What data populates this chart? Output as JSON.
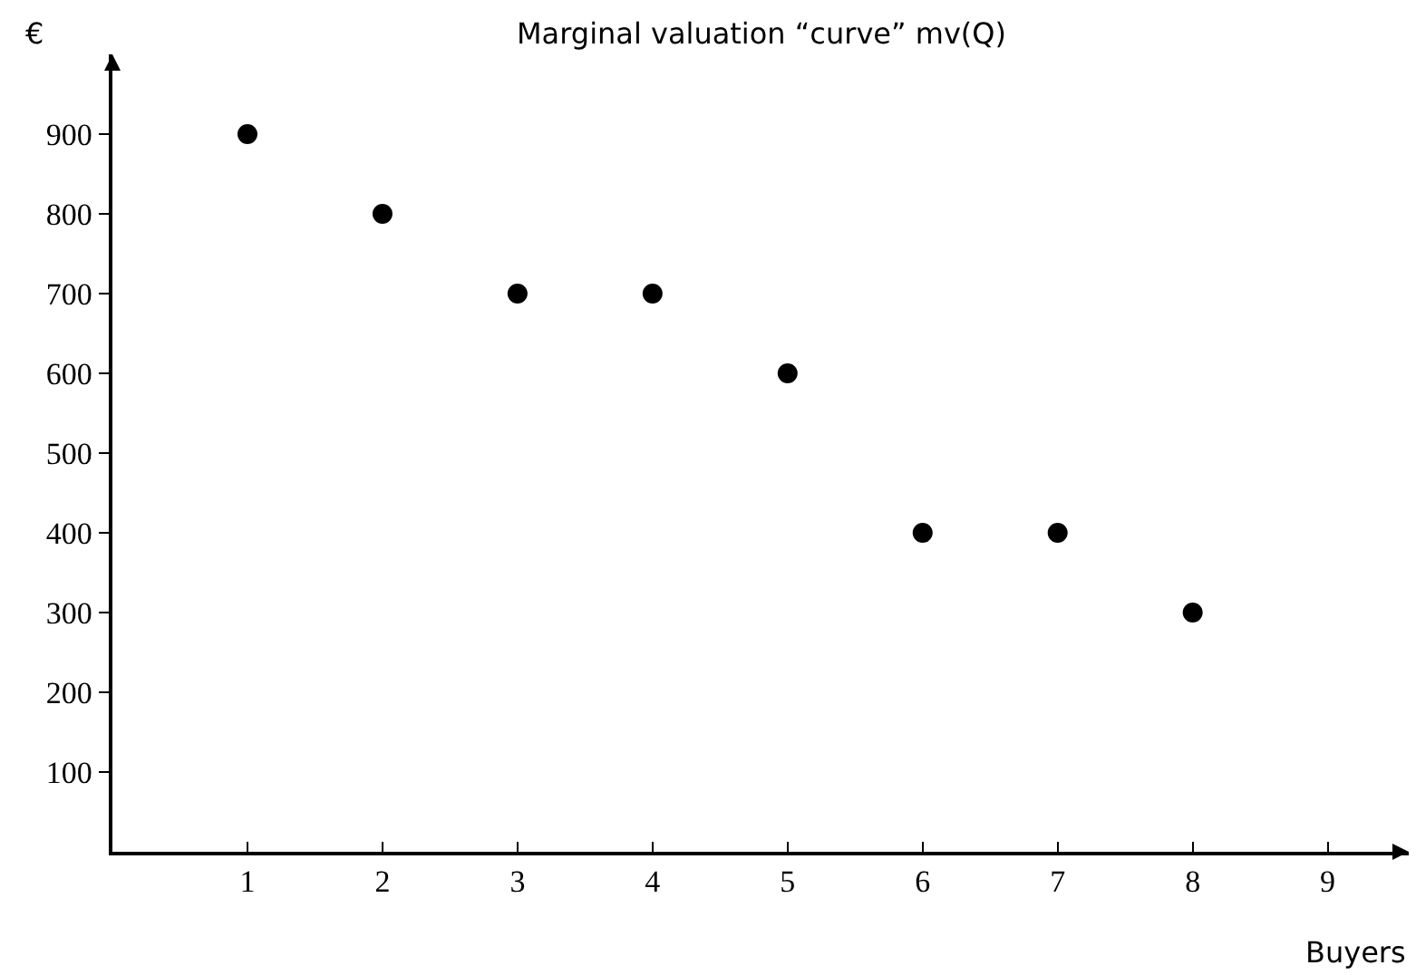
{
  "chart_data": {
    "type": "scatter",
    "title": "Marginal valuation “curve” mv(Q)",
    "xlabel": "Buyers",
    "ylabel": "€",
    "x": [
      1,
      2,
      3,
      4,
      5,
      6,
      7,
      8
    ],
    "series": [
      {
        "color": "#000000",
        "values": [
          900,
          800,
          700,
          700,
          600,
          400,
          400,
          300
        ]
      }
    ],
    "xlim": [
      0,
      9.6
    ],
    "ylim": [
      0,
      1000
    ],
    "xticks": [
      1,
      2,
      3,
      4,
      5,
      6,
      7,
      8,
      9
    ],
    "yticks": [
      100,
      200,
      300,
      400,
      500,
      600,
      700,
      800,
      900
    ],
    "marker": "circle"
  }
}
